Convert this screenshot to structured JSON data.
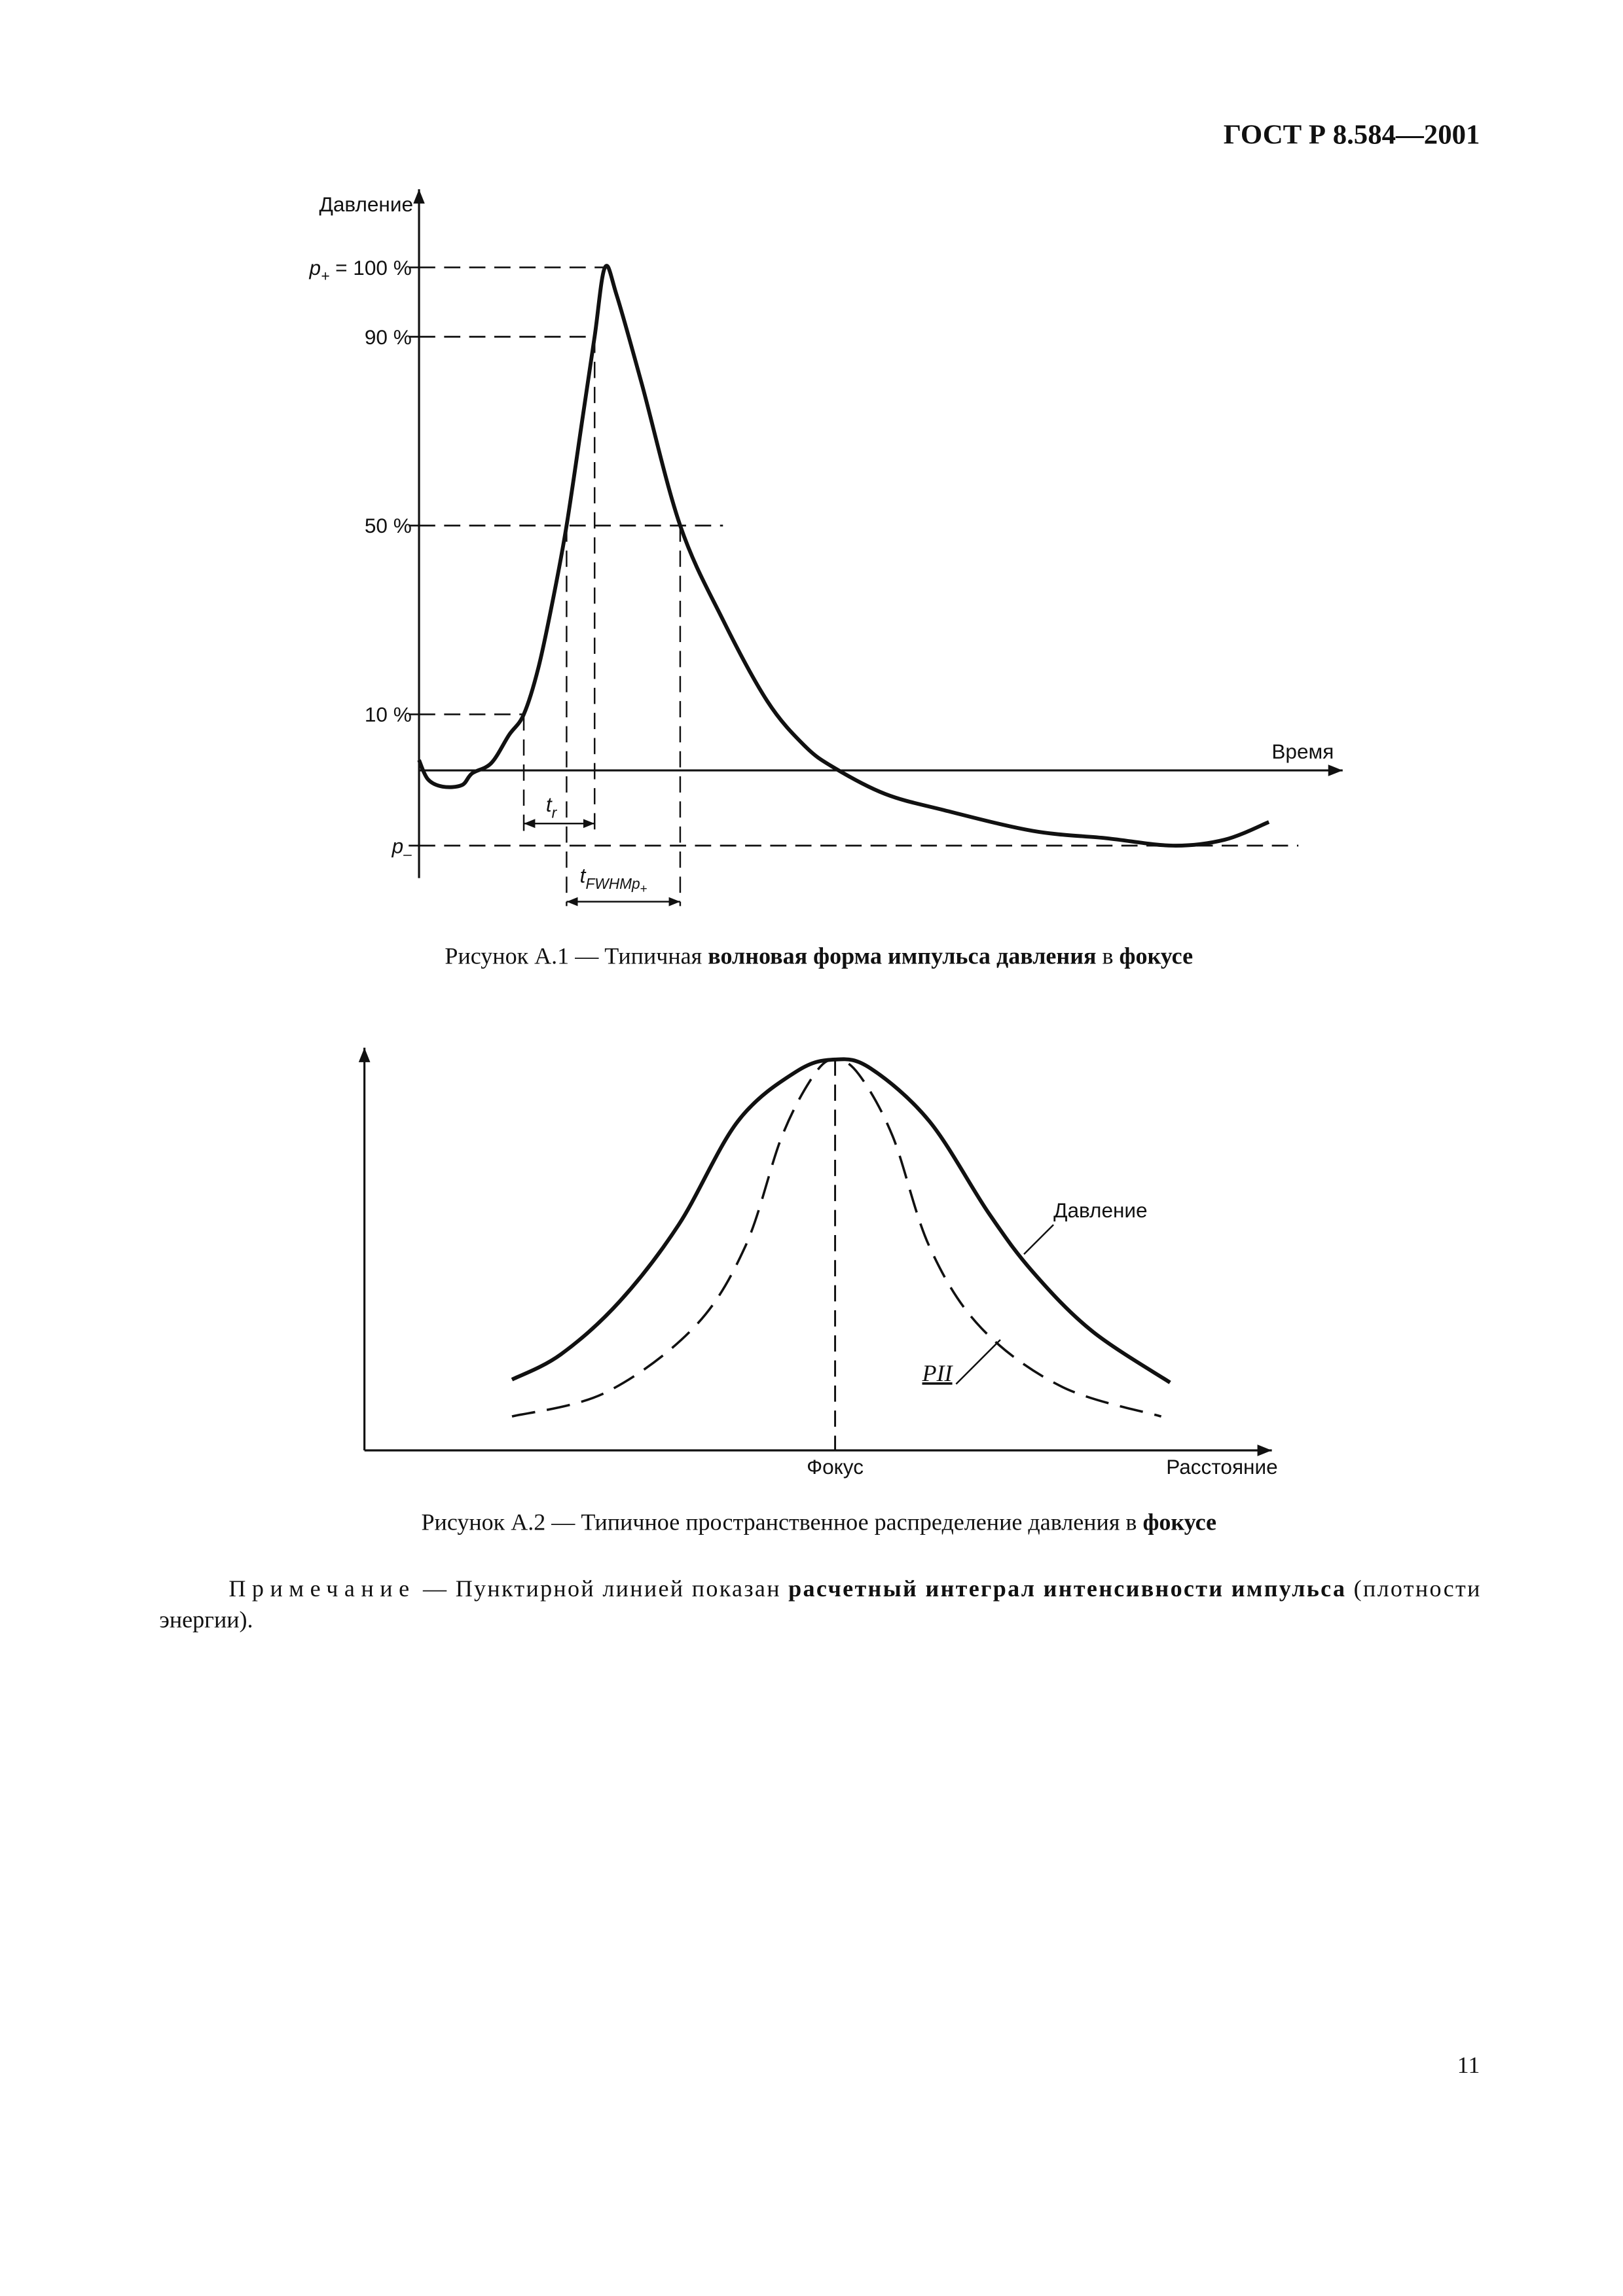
{
  "header": {
    "title": "ГОСТ Р 8.584—2001"
  },
  "figure_1": {
    "y_axis_label": "Давление",
    "x_axis_label": "Время",
    "level_labels": [
      {
        "symbol": "p",
        "subscript": "+",
        "rest": " = 100 %"
      },
      {
        "rest": "90 %"
      },
      {
        "rest": "50 %"
      },
      {
        "rest": "10 %"
      },
      {
        "symbol": "p",
        "subscript": "–"
      }
    ],
    "interval_labels": [
      {
        "symbol": "t",
        "subscript": "r"
      },
      {
        "symbol": "t",
        "subscript": "FWHMp",
        "subsubscript": "+"
      }
    ],
    "caption": [
      {
        "text": "Рисунок А.1 — Типичная ",
        "bold": false
      },
      {
        "text": "волновая форма импульса давления",
        "bold": true
      },
      {
        "text": " в ",
        "bold": false
      },
      {
        "text": "фокусе",
        "bold": true
      }
    ]
  },
  "figure_2": {
    "curve_labels": [
      "Давление",
      "PII"
    ],
    "x_tick_label": "Фокус",
    "x_axis_label": "Расстояние",
    "caption": [
      {
        "text": "Рисунок А.2 — Типичное пространственное распределение давления в ",
        "bold": false
      },
      {
        "text": "фокусе",
        "bold": true
      }
    ]
  },
  "note": {
    "lines": [
      [
        {
          "text": "Примечание",
          "bold": false,
          "spaced": true
        },
        {
          "text": " — Пунктирной линией показан ",
          "bold": false
        },
        {
          "text": "расчетный интеграл интенсивности импульса",
          "bold": true
        },
        {
          "text": " (плотности",
          "bold": false
        }
      ],
      [
        {
          "text": "энергии).",
          "bold": false
        }
      ]
    ]
  },
  "page_number": "11"
}
